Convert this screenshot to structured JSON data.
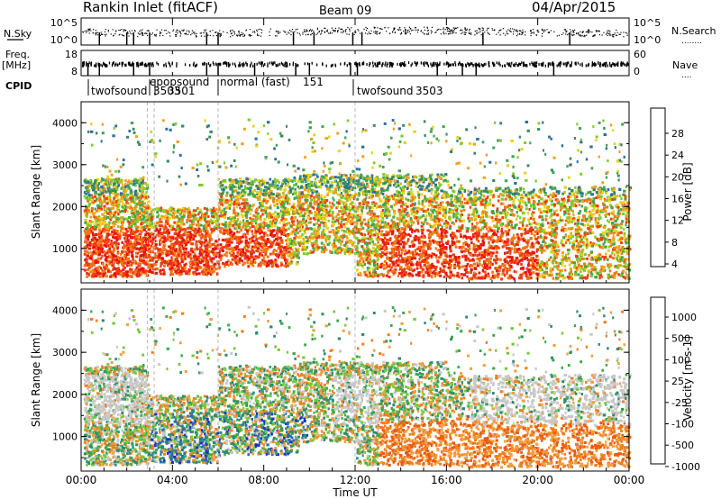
{
  "header": {
    "title": "Rankin Inlet (fitACF)",
    "beam": "Beam 09",
    "date": "04/Apr/2015"
  },
  "nsky_panel": {
    "left_label": "N.Sky",
    "left_ticks": [
      "10^5",
      "10^0"
    ],
    "right_ticks": [
      "10^5",
      "10^0"
    ],
    "right_label": "N.Search",
    "right_dots": "........"
  },
  "freq_panel": {
    "left_label_line1": "Freq.",
    "left_label_line2": "[MHz]",
    "left_ticks": [
      "18",
      "8"
    ],
    "right_ticks": [
      "60",
      "0"
    ],
    "right_label": "Nave",
    "right_dots": "...."
  },
  "cpid_panel": {
    "label": "CPID",
    "programs": [
      {
        "text": "twofsound"
      },
      {
        "text": "3503"
      },
      {
        "text": "epopsound"
      },
      {
        "text": "3501"
      },
      {
        "text": "normal (fast)"
      },
      {
        "text": "151"
      },
      {
        "text": "twofsound"
      },
      {
        "text": "3503"
      }
    ]
  },
  "chart_data": [
    {
      "type": "heatmap",
      "ylabel": "Slant Range [km]",
      "xlabel": "Time UT",
      "x_ticks": [
        "00:00",
        "04:00",
        "08:00",
        "12:00",
        "16:00",
        "20:00",
        "00:00"
      ],
      "x_range_hours": [
        0,
        24
      ],
      "y_ticks": [
        1000,
        2000,
        3000,
        4000
      ],
      "y_range_km": [
        180,
        4500
      ],
      "colorbar": {
        "label": "Power [dB]",
        "ticks": [
          4,
          8,
          12,
          16,
          20,
          24,
          28
        ],
        "range": [
          0,
          32
        ],
        "colors": [
          "#1e1eff",
          "#1e46a0",
          "#2b6e9e",
          "#3a8a60",
          "#3fa550",
          "#7fcc2d",
          "#e6d21a",
          "#f0a023",
          "#f07a14",
          "#ef3c12",
          "#e61410"
        ]
      }
    },
    {
      "type": "heatmap",
      "ylabel": "Slant Range [km]",
      "xlabel": "Time UT",
      "x_ticks": [
        "00:00",
        "04:00",
        "08:00",
        "12:00",
        "16:00",
        "20:00",
        "00:00"
      ],
      "x_range_hours": [
        0,
        24
      ],
      "y_ticks": [
        1000,
        2000,
        3000,
        4000
      ],
      "y_range_km": [
        180,
        4500
      ],
      "colorbar": {
        "label": "Velocity [m s-1]",
        "ticks": [
          "1000",
          "500",
          "100",
          "25",
          "-25",
          "-100",
          "-500",
          "-1000"
        ],
        "colors": [
          "#1e2ed0",
          "#2a66c0",
          "#2f8a6e",
          "#3aa850",
          "#78c83a",
          "#c8c8c8",
          "#f0a040",
          "#f08020",
          "#e85a14",
          "#e01e10"
        ]
      }
    }
  ]
}
